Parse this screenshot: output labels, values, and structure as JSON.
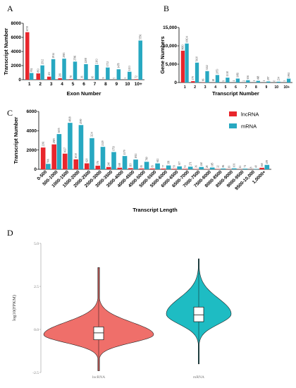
{
  "colors": {
    "lnc": "#e8262c",
    "mrna": "#27a8c1",
    "violin_lnc": "#ef6f6a",
    "violin_mrna": "#1ebcc3"
  },
  "chart_data": [
    {
      "panel": "A",
      "type": "bar",
      "xlabel": "Exon Number",
      "ylabel": "Transcript Number",
      "ylim": [
        0,
        8000
      ],
      "yticks": [
        "0",
        "2000",
        "4000",
        "6000",
        "8000"
      ],
      "categories": [
        "1",
        "2",
        "3",
        "4",
        "5",
        "6",
        "7",
        "8",
        "9",
        "10",
        "10+"
      ],
      "series": [
        {
          "color_key": "lnc",
          "values": [
            6739,
            893,
            433,
            219,
            78,
            36,
            16,
            9,
            5,
            3,
            72
          ]
        },
        {
          "color_key": "mrna",
          "values": [
            952,
            2032,
            2914,
            2983,
            2566,
            2208,
            2103,
            1732,
            1478,
            1133,
            5556
          ]
        }
      ]
    },
    {
      "panel": "B",
      "type": "bar",
      "xlabel": "Transcript Number",
      "ylabel": "Gene Numbers",
      "ylim": [
        0,
        15000
      ],
      "yticks": [
        "0",
        "5,000",
        "10,000",
        "15,000"
      ],
      "categories": [
        "1",
        "2",
        "3",
        "4",
        "5",
        "6",
        "7",
        "8",
        "9",
        "10",
        "10+"
      ],
      "series": [
        {
          "color_key": "lnc",
          "values": [
            8683,
            379,
            66,
            18,
            9,
            4,
            2,
            1,
            1,
            0,
            3
          ]
        },
        {
          "color_key": "mrna",
          "values": [
            10634,
            5430,
            3112,
            2053,
            1338,
            1083,
            636,
            468,
            297,
            234,
            1061
          ]
        }
      ]
    },
    {
      "panel": "C",
      "type": "bar",
      "xlabel": "Transcript Length",
      "ylabel": "Transcript Number",
      "ylim": [
        0,
        6000
      ],
      "yticks": [
        "0",
        "2000",
        "4000",
        "6000"
      ],
      "legend": [
        "lncRNA",
        "mRNA"
      ],
      "categories": [
        "0-500",
        "500-1000",
        "1000-1500",
        "1500-2000",
        "2000-2500",
        "2500-3000",
        "3000-3500",
        "3500-4000",
        "4000-4500",
        "4500-5000",
        "5000-5500",
        "5500-6000",
        "6000-6500",
        "6500-7000",
        "7000-7500",
        "7500-8000",
        "8000-8500",
        "8500-9000",
        "9000-9500",
        "9500-10,000",
        "1,0000+"
      ],
      "series": [
        {
          "color_key": "lnc",
          "values": [
            2261,
            2585,
            1627,
            1030,
            620,
            376,
            240,
            169,
            119,
            83,
            83,
            77,
            59,
            53,
            36,
            28,
            32,
            19,
            12,
            8,
            160
          ]
        },
        {
          "color_key": "mrna",
          "values": [
            566,
            3655,
            4818,
            4590,
            3234,
            2329,
            1793,
            1379,
            1011,
            780,
            612,
            399,
            307,
            271,
            240,
            185,
            86,
            101,
            71,
            40,
            459
          ]
        }
      ]
    },
    {
      "panel": "D",
      "type": "violin",
      "ylabel": "log10(FPKM)",
      "ylim": [
        -2.5,
        5.0
      ],
      "yticks": [
        "5.0",
        "2.5",
        "0.0",
        "-2.5"
      ],
      "categories": [
        "lncRNA",
        "mRNA"
      ],
      "stats": [
        {
          "color_key": "violin_lnc",
          "median": -0.2,
          "q1": -0.6,
          "q3": 0.15,
          "min": -2.4,
          "max": 3.6,
          "mode": -0.3
        },
        {
          "color_key": "violin_mrna",
          "median": 0.85,
          "q1": 0.45,
          "q3": 1.3,
          "min": -2.0,
          "max": 4.1,
          "mode": 0.9
        }
      ]
    }
  ],
  "legend_c": {
    "lnc": "lncRNA",
    "mrna": "mRNA"
  }
}
